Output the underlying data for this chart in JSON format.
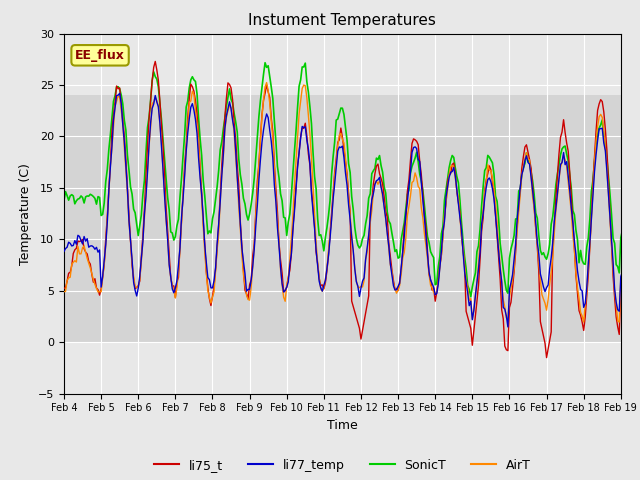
{
  "title": "Instument Temperatures",
  "xlabel": "Time",
  "ylabel": "Temperature (C)",
  "ylim": [
    -5,
    30
  ],
  "xlim": [
    0,
    360
  ],
  "fig_facecolor": "#e8e8e8",
  "axes_facecolor": "#e8e8e8",
  "annotation_text": "EE_flux",
  "annotation_color": "#8B0000",
  "annotation_bg": "#ffff99",
  "annotation_border": "#999900",
  "colors": {
    "li75_t": "#cc0000",
    "li77_temp": "#0000cc",
    "SonicT": "#00cc00",
    "AirT": "#ff8800"
  },
  "yticks": [
    -5,
    0,
    5,
    10,
    15,
    20,
    25,
    30
  ],
  "xtick_labels": [
    "Feb 4",
    "Feb 5",
    "Feb 6",
    "Feb 7",
    "Feb 8",
    "Feb 9",
    "Feb 10",
    "Feb 11",
    "Feb 12",
    "Feb 13",
    "Feb 14",
    "Feb 15",
    "Feb 16",
    "Feb 17",
    "Feb 18",
    "Feb 19"
  ],
  "grid_color": "#ffffff",
  "shaded_band_low": 0,
  "shaded_band_high": 24,
  "shaded_band_color": "#d8d8d8"
}
